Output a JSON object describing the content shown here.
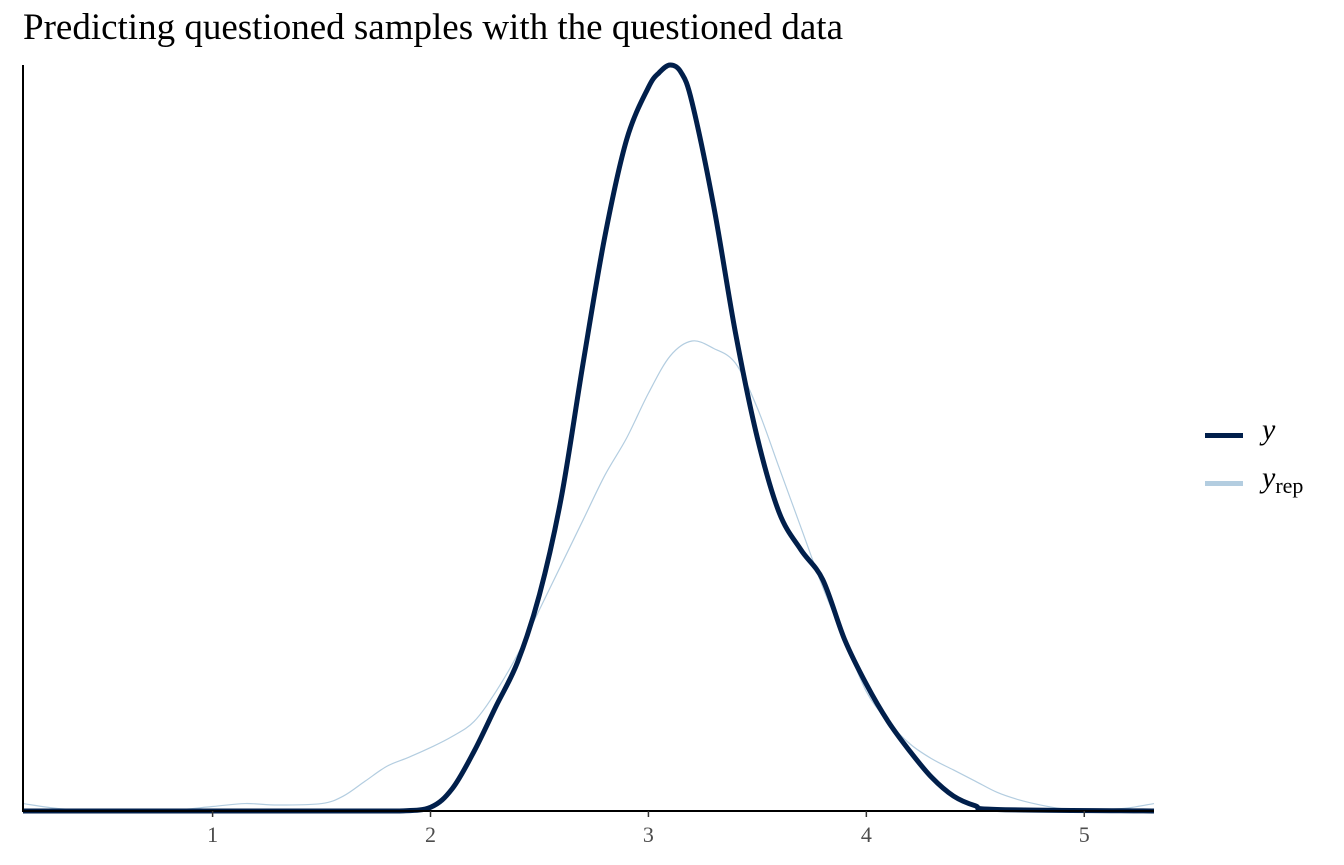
{
  "chart_data": {
    "type": "area",
    "title": "Predicting questioned samples with the questioned data",
    "xlabel": "",
    "ylabel": "",
    "xlim": [
      0.13,
      5.32
    ],
    "ylim": [
      0,
      1.0
    ],
    "x_ticks": [
      "1",
      "2",
      "3",
      "4",
      "5"
    ],
    "y_ticks_shown": false,
    "grid": false,
    "legend_position": "right",
    "series": [
      {
        "name": "y",
        "color": "#011f4b",
        "x": [
          0.13,
          1.0,
          1.6,
          1.85,
          2.0,
          2.1,
          2.2,
          2.3,
          2.4,
          2.5,
          2.6,
          2.7,
          2.8,
          2.9,
          3.0,
          3.05,
          3.1,
          3.15,
          3.2,
          3.3,
          3.4,
          3.5,
          3.6,
          3.7,
          3.8,
          3.9,
          4.0,
          4.1,
          4.2,
          4.3,
          4.4,
          4.5,
          4.6,
          5.32
        ],
        "values": [
          0.0,
          0.0,
          0.0,
          0.0,
          0.005,
          0.03,
          0.08,
          0.14,
          0.2,
          0.29,
          0.42,
          0.6,
          0.77,
          0.9,
          0.97,
          0.99,
          1.0,
          0.99,
          0.95,
          0.81,
          0.64,
          0.5,
          0.4,
          0.35,
          0.31,
          0.23,
          0.17,
          0.12,
          0.08,
          0.045,
          0.02,
          0.007,
          0.002,
          0.0
        ]
      },
      {
        "name": "y_rep",
        "color": "#b3cde0",
        "x": [
          0.13,
          0.3,
          0.5,
          0.8,
          1.0,
          1.15,
          1.3,
          1.5,
          1.6,
          1.7,
          1.8,
          1.9,
          2.0,
          2.1,
          2.2,
          2.3,
          2.4,
          2.5,
          2.6,
          2.7,
          2.8,
          2.9,
          3.0,
          3.1,
          3.2,
          3.3,
          3.4,
          3.5,
          3.6,
          3.7,
          3.8,
          3.9,
          4.0,
          4.1,
          4.2,
          4.3,
          4.4,
          4.5,
          4.6,
          4.7,
          4.8,
          4.9,
          5.0,
          5.1,
          5.2,
          5.32
        ],
        "values": [
          0.01,
          0.003,
          0.001,
          0.001,
          0.006,
          0.01,
          0.008,
          0.01,
          0.02,
          0.04,
          0.06,
          0.072,
          0.085,
          0.1,
          0.12,
          0.16,
          0.21,
          0.27,
          0.33,
          0.39,
          0.45,
          0.5,
          0.56,
          0.61,
          0.63,
          0.62,
          0.6,
          0.54,
          0.46,
          0.38,
          0.3,
          0.23,
          0.16,
          0.12,
          0.09,
          0.07,
          0.055,
          0.04,
          0.025,
          0.015,
          0.008,
          0.003,
          0.001,
          0.002,
          0.004,
          0.01
        ]
      }
    ]
  },
  "legend": {
    "y_label": "y",
    "yrep_main": "y",
    "yrep_sub": "rep"
  }
}
